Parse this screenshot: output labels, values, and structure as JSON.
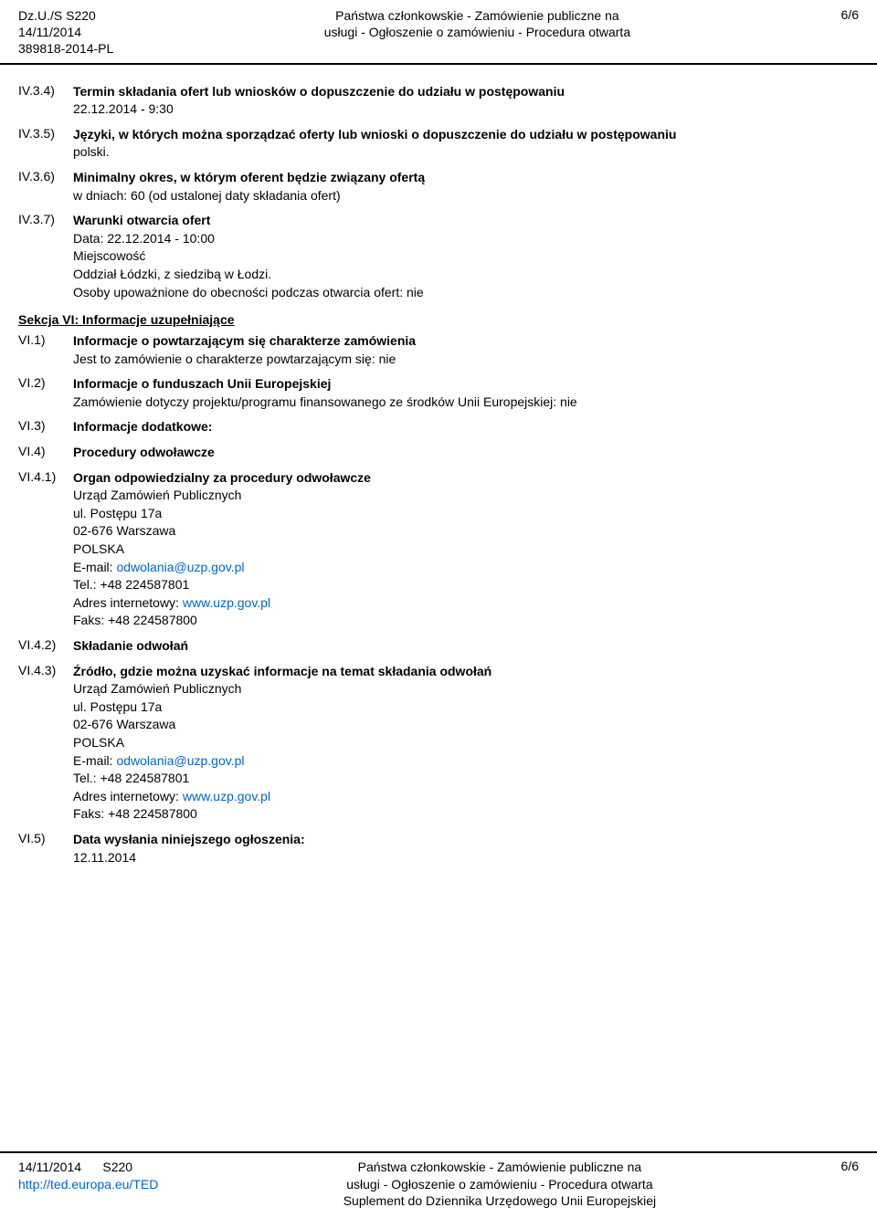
{
  "header": {
    "code1": "Dz.U./S S220",
    "date": "14/11/2014",
    "code2": "389818-2014-PL",
    "center_line1": "Państwa członkowskie - Zamówienie publiczne na",
    "center_line2": "usługi - Ogłoszenie o zamówieniu - Procedura otwarta",
    "page": "6/6"
  },
  "sections": [
    {
      "num": "IV.3.4)",
      "title": "Termin składania ofert lub wniosków o dopuszczenie do udziału w postępowaniu",
      "lines": [
        "22.12.2014 - 9:30"
      ]
    },
    {
      "num": "IV.3.5)",
      "title": "Języki, w których można sporządzać oferty lub wnioski o dopuszczenie do udziału w postępowaniu",
      "lines": [
        "polski."
      ]
    },
    {
      "num": "IV.3.6)",
      "title": "Minimalny okres, w którym oferent będzie związany ofertą",
      "lines": [
        "w dniach: 60 (od ustalonej daty składania ofert)"
      ]
    },
    {
      "num": "IV.3.7)",
      "title": "Warunki otwarcia ofert",
      "lines": [
        "Data: 22.12.2014 - 10:00",
        "Miejscowość",
        "Oddział Łódzki, z siedzibą w Łodzi.",
        "Osoby upoważnione do obecności podczas otwarcia ofert: nie"
      ]
    }
  ],
  "section_vi_title": "Sekcja VI: Informacje uzupełniające",
  "vi_items": [
    {
      "num": "VI.1)",
      "title": "Informacje o powtarzającym się charakterze zamówienia",
      "lines": [
        "Jest to zamówienie o charakterze powtarzającym się: nie"
      ]
    },
    {
      "num": "VI.2)",
      "title": "Informacje o funduszach Unii Europejskiej",
      "lines": [
        "Zamówienie dotyczy projektu/programu finansowanego ze środków Unii Europejskiej: nie"
      ]
    },
    {
      "num": "VI.3)",
      "title": "Informacje dodatkowe:",
      "lines": []
    },
    {
      "num": "VI.4)",
      "title": "Procedury odwoławcze",
      "lines": []
    }
  ],
  "vi41": {
    "num": "VI.4.1)",
    "title": "Organ odpowiedzialny za procedury odwoławcze",
    "org": "Urząd Zamówień Publicznych",
    "street": "ul. Postępu 17a",
    "city": "02-676 Warszawa",
    "country": "POLSKA",
    "email_label": "E-mail: ",
    "email": "odwolania@uzp.gov.pl",
    "tel_label": "Tel.:  ",
    "tel": "+48 224587801",
    "web_label": "Adres internetowy: ",
    "web": "www.uzp.gov.pl",
    "fax_label": "Faks:  ",
    "fax": "+48 224587800"
  },
  "vi42": {
    "num": "VI.4.2)",
    "title": "Składanie odwołań"
  },
  "vi43": {
    "num": "VI.4.3)",
    "title": "Źródło, gdzie można uzyskać informacje na temat składania odwołań",
    "org": "Urząd Zamówień Publicznych",
    "street": "ul. Postępu 17a",
    "city": "02-676 Warszawa",
    "country": "POLSKA",
    "email_label": "E-mail: ",
    "email": "odwolania@uzp.gov.pl",
    "tel_label": "Tel.:  ",
    "tel": "+48 224587801",
    "web_label": "Adres internetowy: ",
    "web": "www.uzp.gov.pl",
    "fax_label": "Faks:  ",
    "fax": "+48 224587800"
  },
  "vi5": {
    "num": "VI.5)",
    "title": "Data wysłania niniejszego ogłoszenia:",
    "lines": [
      "12.11.2014"
    ]
  },
  "footer": {
    "date": "14/11/2014",
    "s": "S220",
    "url": "http://ted.europa.eu/TED",
    "center_line1": "Państwa członkowskie - Zamówienie publiczne na",
    "center_line2": "usługi - Ogłoszenie o zamówieniu - Procedura otwarta",
    "center_line3": "Suplement do Dziennika Urzędowego Unii Europejskiej",
    "page": "6/6"
  }
}
